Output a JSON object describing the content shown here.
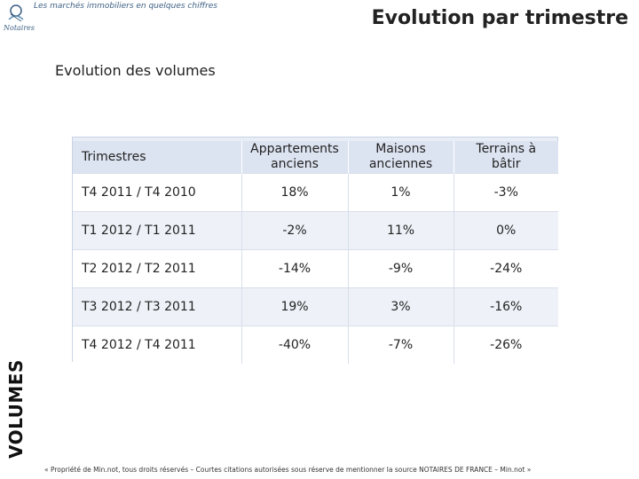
{
  "header": {
    "tagline": "Les marchés immobiliers en quelques chiffres",
    "title": "Evolution par trimestre",
    "logo_text": "Notaires"
  },
  "subtitle": "Evolution des volumes",
  "side_label": "VOLUMES",
  "table": {
    "columns": [
      {
        "line1": "Trimestres",
        "line2": ""
      },
      {
        "line1": "Appartements",
        "line2": "anciens"
      },
      {
        "line1": "Maisons",
        "line2": "anciennes"
      },
      {
        "line1": "Terrains à",
        "line2": "bâtir"
      }
    ],
    "rows": [
      [
        "T4 2011 / T4 2010",
        "18%",
        "1%",
        "-3%"
      ],
      [
        "T1 2012 / T1 2011",
        "-2%",
        "11%",
        "0%"
      ],
      [
        "T2 2012 / T2 2011",
        "-14%",
        "-9%",
        "-24%"
      ],
      [
        "T3 2012 / T3 2011",
        "19%",
        "3%",
        "-16%"
      ],
      [
        "T4 2012 / T4 2011",
        "-40%",
        "-7%",
        "-26%"
      ]
    ]
  },
  "footer": "« Propriété de Min.not, tous droits réservés – Courtes citations autorisées sous réserve de mentionner la source NOTAIRES DE FRANCE – Min.not »",
  "colors": {
    "header_bg": "#dde4f1",
    "alt_row": "#eef2f8",
    "logo_blue": "#3c5f83"
  }
}
